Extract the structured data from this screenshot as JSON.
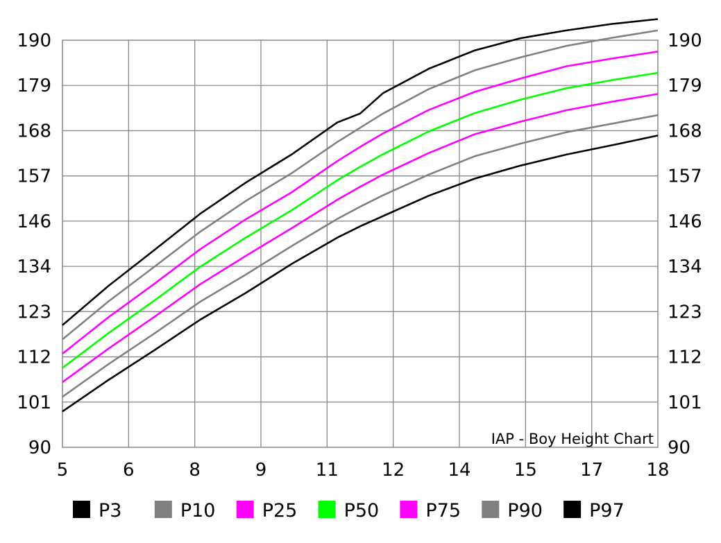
{
  "chart_data": {
    "type": "line",
    "title": "",
    "annotation": "IAP - Boy Height Chart",
    "xlabel": "",
    "ylabel": "",
    "x": [
      5,
      6,
      7,
      8,
      9,
      10,
      11,
      11.5,
      12,
      13,
      14,
      15,
      16,
      17,
      18
    ],
    "x_tick_labels": [
      "5",
      "6",
      "8",
      "9",
      "11",
      "12",
      "14",
      "15",
      "17",
      "18"
    ],
    "y_tick_labels": [
      "90",
      "101",
      "112",
      "123",
      "134",
      "146",
      "157",
      "168",
      "179",
      "190"
    ],
    "ylim": [
      90,
      190
    ],
    "xlim": [
      5,
      18
    ],
    "grid": true,
    "legend_position": "bottom",
    "series": [
      {
        "name": "P3",
        "color": "#000000",
        "values": [
          98.8,
          106.5,
          113.8,
          121.3,
          127.9,
          135.0,
          141.5,
          144.3,
          146.8,
          151.8,
          156.0,
          159.2,
          161.9,
          164.2,
          166.6
        ]
      },
      {
        "name": "P10",
        "color": "#808080",
        "values": [
          102.4,
          110.4,
          117.9,
          125.7,
          132.4,
          139.4,
          146.1,
          149.1,
          151.9,
          157.0,
          161.5,
          164.6,
          167.4,
          169.5,
          171.6
        ]
      },
      {
        "name": "P25",
        "color": "#ff00ff",
        "values": [
          106.0,
          114.2,
          122.0,
          130.0,
          137.0,
          143.8,
          150.8,
          154.0,
          157.0,
          162.3,
          166.9,
          170.0,
          172.8,
          174.9,
          176.8
        ]
      },
      {
        "name": "P50",
        "color": "#00ff00",
        "values": [
          109.5,
          118.0,
          126.0,
          134.3,
          141.5,
          148.2,
          155.6,
          158.9,
          162.0,
          167.6,
          172.1,
          175.4,
          178.2,
          180.2,
          182.0
        ]
      },
      {
        "name": "P75",
        "color": "#ff00ff",
        "values": [
          113.0,
          121.9,
          130.1,
          138.6,
          146.0,
          152.6,
          160.3,
          163.8,
          167.1,
          172.9,
          177.3,
          180.6,
          183.6,
          185.5,
          187.2
        ]
      },
      {
        "name": "P90",
        "color": "#808080",
        "values": [
          116.5,
          125.8,
          134.3,
          142.9,
          150.5,
          157.3,
          165.0,
          168.5,
          172.0,
          178.0,
          182.6,
          185.8,
          188.6,
          190.6,
          192.4
        ]
      },
      {
        "name": "P97",
        "color": "#000000",
        "values": [
          120.0,
          129.6,
          138.4,
          147.3,
          155.0,
          161.9,
          169.8,
          172.0,
          177.0,
          183.0,
          187.5,
          190.5,
          192.4,
          194.0,
          195.2
        ]
      }
    ]
  }
}
